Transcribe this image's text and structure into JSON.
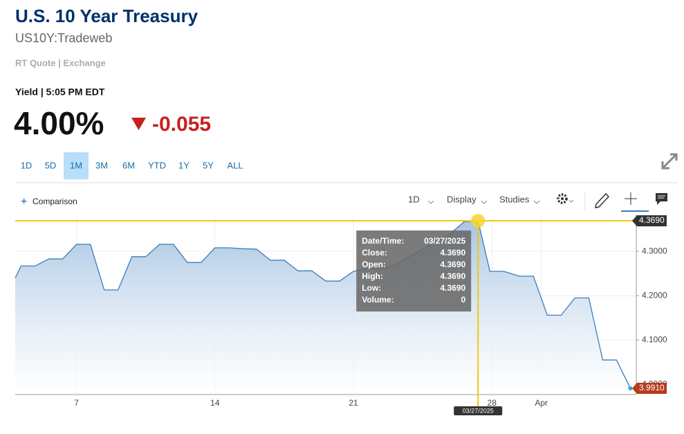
{
  "header": {
    "title": "U.S. 10 Year Treasury",
    "symbol": "US10Y:Tradeweb",
    "source": "RT Quote | Exchange",
    "yield_label": "Yield | 5:05 PM EDT",
    "price": "4.00%",
    "change": "-0.055"
  },
  "ranges": {
    "items": [
      "1D",
      "5D",
      "1M",
      "3M",
      "6M",
      "YTD",
      "1Y",
      "5Y",
      "ALL"
    ],
    "selected": 2
  },
  "toolbar": {
    "comparison": "Comparison",
    "interval": "1D",
    "display": "Display",
    "studies": "Studies"
  },
  "chart_data": {
    "type": "area",
    "color": "#3d7cb8",
    "x": [
      3.9,
      4.2,
      4.9,
      5.6,
      6.3,
      7.0,
      7.7,
      8.4,
      9.1,
      9.8,
      10.5,
      11.2,
      11.9,
      12.6,
      13.3,
      14.0,
      14.7,
      15.4,
      16.1,
      16.8,
      17.5,
      18.2,
      18.9,
      19.6,
      20.3,
      21.0,
      21.7,
      22.4,
      23.1,
      25.9,
      26.6,
      27.3,
      27.9,
      28.6,
      29.4,
      30.1,
      30.8,
      31.5,
      32.2,
      32.9,
      33.6,
      34.3,
      35.0
    ],
    "values": [
      4.24,
      4.267,
      4.267,
      4.283,
      4.283,
      4.316,
      4.316,
      4.213,
      4.213,
      4.288,
      4.288,
      4.316,
      4.316,
      4.275,
      4.275,
      4.308,
      4.308,
      4.306,
      4.305,
      4.28,
      4.28,
      4.256,
      4.256,
      4.233,
      4.233,
      4.255,
      4.26,
      4.26,
      4.27,
      4.34,
      4.367,
      4.369,
      4.255,
      4.255,
      4.244,
      4.244,
      4.156,
      4.156,
      4.195,
      4.195,
      4.055,
      4.055,
      3.991
    ],
    "xlim": [
      3.9,
      35.3
    ],
    "ylim": [
      3.977,
      4.383
    ],
    "xticks": [
      {
        "value": 7,
        "label": "7"
      },
      {
        "value": 14,
        "label": "14"
      },
      {
        "value": 21,
        "label": "21"
      },
      {
        "value": 28,
        "label": "28"
      },
      {
        "value": 30.5,
        "label": "Apr"
      }
    ],
    "yticks": [
      {
        "value": 4,
        "label": "4.0000"
      },
      {
        "value": 4.1,
        "label": "4.1000"
      },
      {
        "value": 4.2,
        "label": "4.2000"
      },
      {
        "value": 4.3,
        "label": "4.3000"
      }
    ],
    "last_value_label": "3.9910",
    "crosshair": {
      "value": 4.369,
      "label": "4.3690",
      "x": 27.3,
      "x_label": "03/27/2025"
    },
    "tooltip": [
      [
        "Date/Time:",
        "03/27/2025"
      ],
      [
        "Close:",
        "4.3690"
      ],
      [
        "Open:",
        "4.3690"
      ],
      [
        "High:",
        "4.3690"
      ],
      [
        "Low:",
        "4.3690"
      ],
      [
        "Volume:",
        "0"
      ]
    ]
  }
}
